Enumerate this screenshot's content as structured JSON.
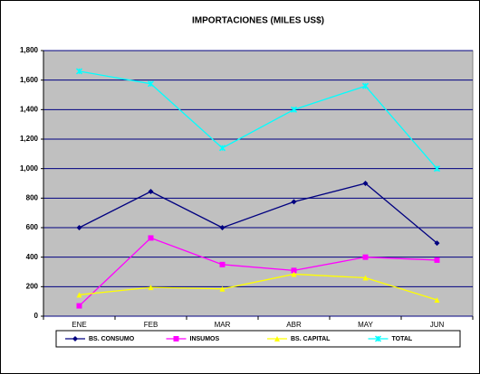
{
  "chart_data": {
    "type": "line",
    "title": "IMPORTACIONES (MILES US$)",
    "categories": [
      "ENE",
      "FEB",
      "MAR",
      "ABR",
      "MAY",
      "JUN"
    ],
    "series": [
      {
        "name": "BS. CONSUMO",
        "color": "#000080",
        "marker": "diamond",
        "values": [
          600,
          845,
          600,
          775,
          900,
          495
        ]
      },
      {
        "name": "INSUMOS",
        "color": "#ff00ff",
        "marker": "square",
        "values": [
          70,
          530,
          350,
          310,
          400,
          380
        ]
      },
      {
        "name": "BS. CAPITAL",
        "color": "#ffff00",
        "marker": "triangle",
        "values": [
          145,
          195,
          185,
          285,
          260,
          110
        ]
      },
      {
        "name": "TOTAL",
        "color": "#00ffff",
        "marker": "star",
        "values": [
          1660,
          1575,
          1140,
          1400,
          1560,
          1000
        ]
      }
    ],
    "ylim": [
      0,
      1800
    ],
    "yticks": [
      0,
      200,
      400,
      600,
      800,
      {
        "value": 1000,
        "label": "1,000"
      },
      {
        "value": 1200,
        "label": "1,200"
      },
      {
        "value": 1400,
        "label": "1,400"
      },
      {
        "value": 1600,
        "label": "1,600"
      },
      {
        "value": 1800,
        "label": "1,800"
      }
    ],
    "grid": true,
    "legend": "bottom"
  }
}
